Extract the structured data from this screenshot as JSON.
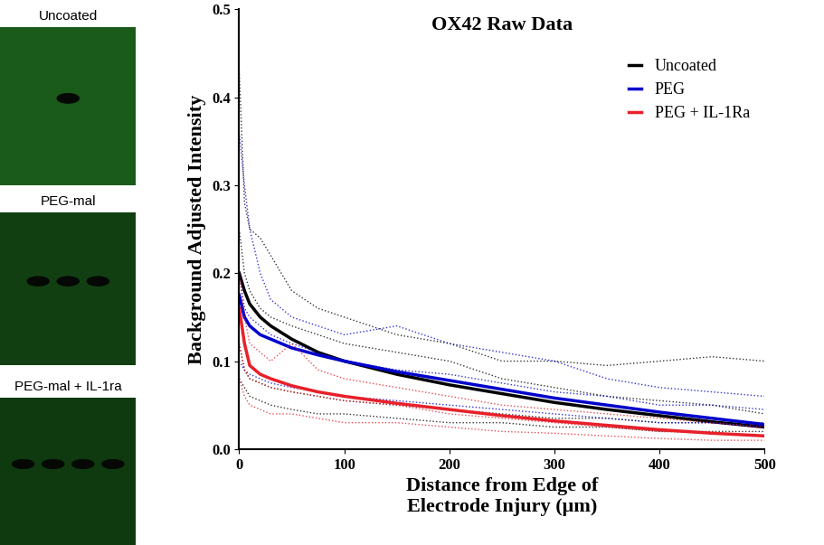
{
  "panels": [
    {
      "label": "Uncoated"
    },
    {
      "label": "PEG-mal"
    },
    {
      "label": "PEG-mal + IL-1ra"
    }
  ],
  "chart_data": {
    "type": "line",
    "title": "OX42 Raw Data",
    "x_label": "Distance from Edge of\nElectrode Injury (μm)",
    "y_label": "Background Adjusted Intensity",
    "x": [
      0,
      5,
      10,
      20,
      30,
      50,
      75,
      100,
      150,
      200,
      250,
      300,
      350,
      400,
      450,
      500
    ],
    "xlim": [
      0,
      500
    ],
    "xticks": [
      0,
      100,
      200,
      300,
      400,
      500
    ],
    "ylim": [
      0,
      0.5
    ],
    "yticks": [
      {
        "value": 0,
        "label": "0.0"
      },
      0.1,
      0.2,
      0.3,
      0.4,
      0.5
    ],
    "legend": "upper right",
    "series": [
      {
        "name": "Uncoated",
        "color": "#000000",
        "values": [
          0.2,
          0.18,
          0.165,
          0.15,
          0.14,
          0.125,
          0.11,
          0.1,
          0.085,
          0.073,
          0.063,
          0.053,
          0.045,
          0.038,
          0.031,
          0.025
        ],
        "traces": [
          [
            0.43,
            0.28,
            0.25,
            0.24,
            0.22,
            0.18,
            0.16,
            0.15,
            0.13,
            0.12,
            0.1,
            0.1,
            0.095,
            0.1,
            0.105,
            0.1
          ],
          [
            0.25,
            0.2,
            0.18,
            0.16,
            0.15,
            0.14,
            0.13,
            0.12,
            0.11,
            0.1,
            0.08,
            0.07,
            0.06,
            0.055,
            0.05,
            0.04
          ],
          [
            0.12,
            0.09,
            0.08,
            0.075,
            0.07,
            0.065,
            0.06,
            0.055,
            0.05,
            0.045,
            0.04,
            0.035,
            0.035,
            0.03,
            0.03,
            0.03
          ],
          [
            0.08,
            0.07,
            0.06,
            0.055,
            0.05,
            0.045,
            0.04,
            0.04,
            0.035,
            0.03,
            0.03,
            0.025,
            0.025,
            0.02,
            0.02,
            0.02
          ]
        ]
      },
      {
        "name": "PEG",
        "color": "#0000cc",
        "values": [
          0.175,
          0.15,
          0.14,
          0.13,
          0.125,
          0.115,
          0.107,
          0.1,
          0.088,
          0.078,
          0.068,
          0.058,
          0.05,
          0.042,
          0.035,
          0.028
        ],
        "traces": [
          [
            0.36,
            0.3,
            0.25,
            0.2,
            0.17,
            0.15,
            0.14,
            0.13,
            0.14,
            0.12,
            0.11,
            0.1,
            0.08,
            0.07,
            0.065,
            0.06
          ],
          [
            0.2,
            0.16,
            0.15,
            0.14,
            0.13,
            0.12,
            0.11,
            0.1,
            0.09,
            0.085,
            0.075,
            0.065,
            0.06,
            0.05,
            0.05,
            0.045
          ],
          [
            0.1,
            0.09,
            0.085,
            0.08,
            0.075,
            0.07,
            0.065,
            0.06,
            0.055,
            0.05,
            0.045,
            0.04,
            0.035,
            0.03,
            0.03,
            0.025
          ]
        ]
      },
      {
        "name": "PEG + IL-1Ra",
        "color": "#e8202a",
        "values": [
          0.16,
          0.12,
          0.095,
          0.085,
          0.08,
          0.072,
          0.065,
          0.06,
          0.052,
          0.045,
          0.038,
          0.032,
          0.027,
          0.022,
          0.018,
          0.015
        ],
        "traces": [
          [
            0.2,
            0.15,
            0.12,
            0.11,
            0.1,
            0.12,
            0.09,
            0.08,
            0.07,
            0.06,
            0.05,
            0.045,
            0.04,
            0.035,
            0.03,
            0.025
          ],
          [
            0.12,
            0.09,
            0.08,
            0.075,
            0.07,
            0.065,
            0.06,
            0.055,
            0.05,
            0.04,
            0.035,
            0.03,
            0.025,
            0.02,
            0.018,
            0.015
          ],
          [
            0.08,
            0.06,
            0.05,
            0.045,
            0.04,
            0.04,
            0.035,
            0.03,
            0.03,
            0.025,
            0.02,
            0.018,
            0.015,
            0.012,
            0.01,
            0.01
          ]
        ]
      }
    ]
  }
}
